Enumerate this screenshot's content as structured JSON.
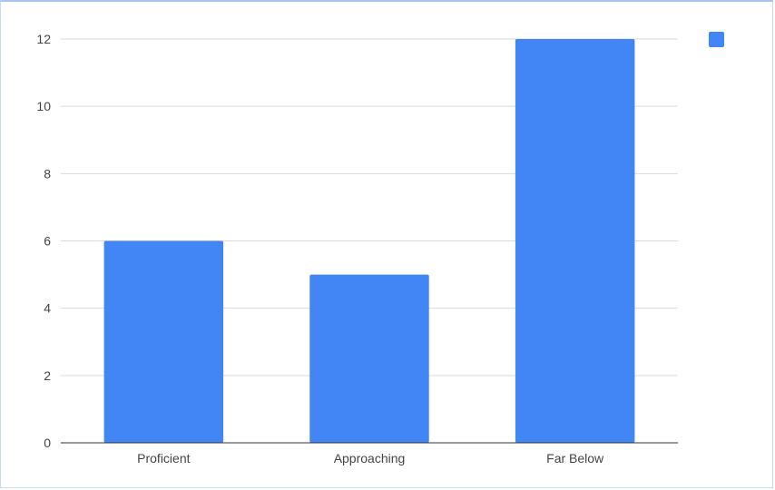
{
  "chart_data": {
    "type": "bar",
    "categories": [
      "Proficient",
      "Approaching",
      "Far Below"
    ],
    "values": [
      6,
      5,
      12
    ],
    "title": "",
    "xlabel": "",
    "ylabel": "",
    "ylim": [
      0,
      12
    ],
    "yticks": [
      0,
      2,
      4,
      6,
      8,
      10,
      12
    ],
    "grid": true,
    "legend": "top-right",
    "bar_color": "#4285F4",
    "grid_color": "#d9d9d9",
    "axis_color": "#333333"
  }
}
